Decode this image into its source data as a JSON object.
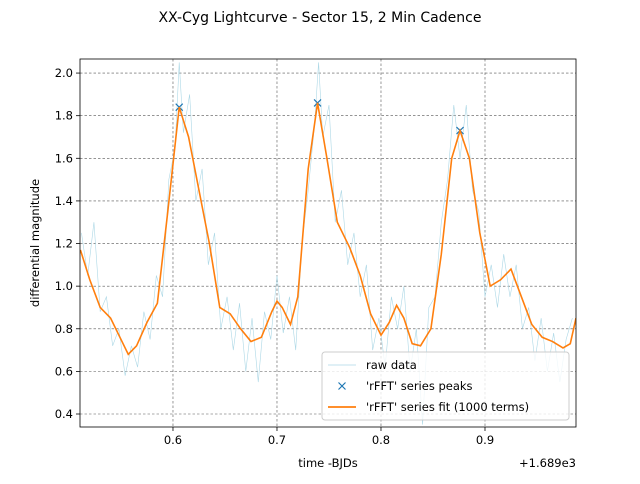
{
  "chart_data": {
    "type": "line",
    "title": "XX-Cyg Lightcurve - Sector 15, 2 Min Cadence",
    "x_label": "time -BJDs",
    "y_label": "differential magnitude",
    "x_offset_label": "+1.689e3",
    "xlim": [
      0.5106,
      0.9875
    ],
    "ylim": [
      0.339,
      2.066
    ],
    "xticks": [
      0.6,
      0.7,
      0.8,
      0.9
    ],
    "yticks": [
      0.4,
      0.6,
      0.8,
      {
        "value": 1,
        "label": "1.0"
      },
      1.2,
      1.4,
      1.6,
      1.8,
      {
        "value": 2,
        "label": "2.0"
      }
    ],
    "grid": true,
    "legend": "lower right",
    "series": [
      {
        "name": "raw data",
        "style": "line",
        "color": "#add8e6",
        "x": [
          0.512,
          0.518,
          0.524,
          0.53,
          0.536,
          0.542,
          0.548,
          0.554,
          0.56,
          0.566,
          0.572,
          0.578,
          0.584,
          0.59,
          0.596,
          0.602,
          0.606,
          0.61,
          0.616,
          0.622,
          0.628,
          0.634,
          0.64,
          0.646,
          0.652,
          0.658,
          0.664,
          0.67,
          0.676,
          0.682,
          0.688,
          0.694,
          0.7,
          0.706,
          0.712,
          0.718,
          0.724,
          0.73,
          0.736,
          0.74,
          0.744,
          0.75,
          0.756,
          0.762,
          0.768,
          0.774,
          0.78,
          0.786,
          0.792,
          0.798,
          0.804,
          0.81,
          0.816,
          0.822,
          0.828,
          0.834,
          0.84,
          0.846,
          0.852,
          0.858,
          0.864,
          0.87,
          0.876,
          0.882,
          0.888,
          0.894,
          0.9,
          0.906,
          0.912,
          0.918,
          0.924,
          0.93,
          0.936,
          0.942,
          0.948,
          0.954,
          0.96,
          0.966,
          0.972,
          0.978,
          0.984
        ],
        "values": [
          1.25,
          1.05,
          1.3,
          0.88,
          0.95,
          0.72,
          0.8,
          0.58,
          0.72,
          0.62,
          0.88,
          0.75,
          1.05,
          0.95,
          1.5,
          1.65,
          2.05,
          1.72,
          1.9,
          1.4,
          1.55,
          1.1,
          1.25,
          0.8,
          0.95,
          0.7,
          0.92,
          0.6,
          0.85,
          0.55,
          0.88,
          0.75,
          1.05,
          0.78,
          0.95,
          0.7,
          1.2,
          1.45,
          1.75,
          2.05,
          1.7,
          1.85,
          1.3,
          1.45,
          1.1,
          1.25,
          0.95,
          1.1,
          0.7,
          0.85,
          0.62,
          0.95,
          0.8,
          1.0,
          0.6,
          0.8,
          0.35,
          0.9,
          0.95,
          1.3,
          1.5,
          1.85,
          1.6,
          1.85,
          1.45,
          1.35,
          0.95,
          1.1,
          0.9,
          1.15,
          0.95,
          1.1,
          0.8,
          0.9,
          0.65,
          0.85,
          0.6,
          0.78,
          0.55,
          0.75,
          0.85
        ]
      },
      {
        "name": "'rFFT' series peaks",
        "style": "marker",
        "color": "#1f77b4",
        "x": [
          0.606,
          0.739,
          0.876
        ],
        "values": [
          1.84,
          1.86,
          1.73
        ]
      },
      {
        "name": "'rFFT' series fit (1000 terms)",
        "style": "line",
        "color": "#ff7f0e",
        "x": [
          0.511,
          0.52,
          0.53,
          0.54,
          0.55,
          0.557,
          0.565,
          0.575,
          0.585,
          0.595,
          0.606,
          0.615,
          0.625,
          0.635,
          0.645,
          0.655,
          0.665,
          0.675,
          0.685,
          0.695,
          0.7,
          0.705,
          0.713,
          0.72,
          0.73,
          0.739,
          0.748,
          0.758,
          0.77,
          0.78,
          0.79,
          0.8,
          0.808,
          0.815,
          0.822,
          0.83,
          0.838,
          0.848,
          0.858,
          0.868,
          0.876,
          0.885,
          0.895,
          0.905,
          0.915,
          0.925,
          0.935,
          0.945,
          0.955,
          0.965,
          0.975,
          0.982,
          0.9875
        ],
        "values": [
          1.17,
          1.03,
          0.9,
          0.85,
          0.75,
          0.68,
          0.72,
          0.83,
          0.92,
          1.35,
          1.84,
          1.7,
          1.45,
          1.2,
          0.9,
          0.87,
          0.8,
          0.74,
          0.76,
          0.88,
          0.93,
          0.9,
          0.82,
          0.95,
          1.55,
          1.86,
          1.6,
          1.3,
          1.18,
          1.05,
          0.87,
          0.77,
          0.83,
          0.91,
          0.85,
          0.73,
          0.72,
          0.8,
          1.15,
          1.6,
          1.73,
          1.6,
          1.25,
          1.0,
          1.03,
          1.08,
          0.95,
          0.82,
          0.76,
          0.74,
          0.71,
          0.73,
          0.85
        ]
      }
    ]
  }
}
